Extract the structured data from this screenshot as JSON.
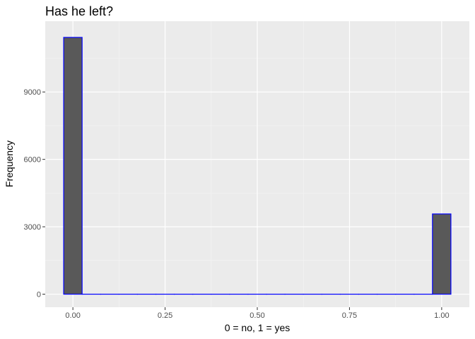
{
  "chart_data": {
    "type": "bar",
    "title": "Has he left?",
    "xlabel": "0 = no, 1 = yes",
    "ylabel": "Frequency",
    "xlim": [
      -0.075,
      1.075
    ],
    "ylim": [
      -580,
      12150
    ],
    "x_ticks": [
      0.0,
      0.25,
      0.5,
      0.75,
      1.0
    ],
    "x_tick_labels": [
      "0.00",
      "0.25",
      "0.50",
      "0.75",
      "1.00"
    ],
    "y_ticks": [
      0,
      3000,
      6000,
      9000
    ],
    "y_tick_labels": [
      "0",
      "3000",
      "6000",
      "9000"
    ],
    "bins": [
      {
        "x0": -0.025,
        "x1": 0.025,
        "count": 11428
      },
      {
        "x0": 0.025,
        "x1": 0.075,
        "count": 0
      },
      {
        "x0": 0.075,
        "x1": 0.125,
        "count": 0
      },
      {
        "x0": 0.125,
        "x1": 0.175,
        "count": 0
      },
      {
        "x0": 0.175,
        "x1": 0.225,
        "count": 0
      },
      {
        "x0": 0.225,
        "x1": 0.275,
        "count": 0
      },
      {
        "x0": 0.275,
        "x1": 0.325,
        "count": 0
      },
      {
        "x0": 0.325,
        "x1": 0.375,
        "count": 0
      },
      {
        "x0": 0.375,
        "x1": 0.425,
        "count": 0
      },
      {
        "x0": 0.425,
        "x1": 0.475,
        "count": 0
      },
      {
        "x0": 0.475,
        "x1": 0.525,
        "count": 0
      },
      {
        "x0": 0.525,
        "x1": 0.575,
        "count": 0
      },
      {
        "x0": 0.575,
        "x1": 0.625,
        "count": 0
      },
      {
        "x0": 0.625,
        "x1": 0.675,
        "count": 0
      },
      {
        "x0": 0.675,
        "x1": 0.725,
        "count": 0
      },
      {
        "x0": 0.725,
        "x1": 0.775,
        "count": 0
      },
      {
        "x0": 0.775,
        "x1": 0.825,
        "count": 0
      },
      {
        "x0": 0.825,
        "x1": 0.875,
        "count": 0
      },
      {
        "x0": 0.875,
        "x1": 0.925,
        "count": 0
      },
      {
        "x0": 0.925,
        "x1": 0.975,
        "count": 0
      },
      {
        "x0": 0.975,
        "x1": 1.025,
        "count": 3571
      }
    ],
    "grid": true,
    "legend": "none",
    "colors": {
      "bar_fill": "#595959",
      "bar_outline": "#0000ff",
      "panel_background": "#ebebeb",
      "grid_major": "#ffffff",
      "grid_minor": "#f5f5f5",
      "tick_text": "#4d4d4d",
      "tick_mark": "#333333"
    }
  }
}
